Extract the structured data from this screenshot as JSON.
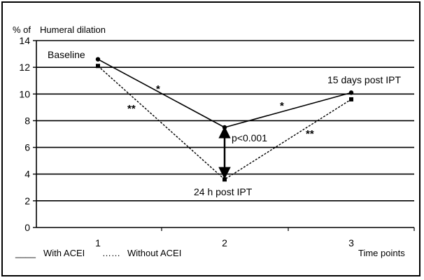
{
  "chart_data": {
    "type": "line",
    "title": "",
    "ylabel": "% of Humeral dilation",
    "ylabel_parts": [
      "% of",
      "Humeral dilation"
    ],
    "xlabel": "Time points",
    "x": [
      1,
      2,
      3
    ],
    "x_tick_labels": [
      "1",
      "2",
      "3"
    ],
    "ylim": [
      0,
      14
    ],
    "y_ticks": [
      0,
      2,
      4,
      6,
      8,
      10,
      12,
      14
    ],
    "grid": "horizontal",
    "series": [
      {
        "name": "With ACEI",
        "style": "solid",
        "marker": "circle",
        "values": [
          12.6,
          7.5,
          10.1
        ]
      },
      {
        "name": "Without ACEI",
        "style": "dashed",
        "marker": "square",
        "values": [
          12.1,
          3.6,
          9.6
        ]
      }
    ],
    "legend": {
      "placement": "bottom-left",
      "with_label": "With ACEI",
      "without_label": "Without ACEI",
      "with_prefix": "____",
      "without_prefix": "……"
    },
    "annotations": {
      "baseline": "Baseline",
      "post24": "24 h post IPT",
      "post15": "15 days post IPT",
      "pvalue": "p<0.001",
      "sig1": "*",
      "sig2": "**"
    },
    "colors": {
      "line": "#000000",
      "grid": "#000000"
    }
  }
}
